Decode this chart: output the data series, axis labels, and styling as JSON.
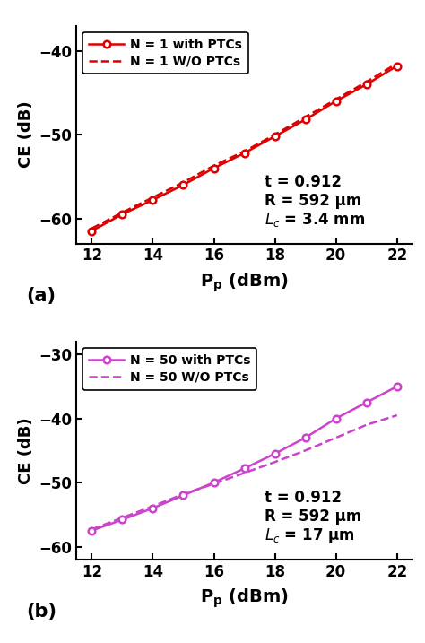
{
  "panel_a": {
    "x": [
      12,
      13,
      14,
      15,
      16,
      17,
      18,
      19,
      20,
      21,
      22
    ],
    "y_with_ptcs": [
      -61.5,
      -59.5,
      -57.8,
      -56.0,
      -54.0,
      -52.2,
      -50.2,
      -48.2,
      -46.0,
      -44.0,
      -41.8
    ],
    "y_wo_ptcs": [
      -61.2,
      -59.3,
      -57.5,
      -55.7,
      -53.7,
      -52.0,
      -50.0,
      -47.9,
      -45.8,
      -43.7,
      -41.5
    ],
    "color_with": "#dd0000",
    "color_wo": "#dd0000",
    "ylabel": "CE (dB)",
    "xlabel": "$\\mathbf{P_p}$ (dBm)",
    "ylim": [
      -63,
      -37
    ],
    "xlim": [
      11.5,
      22.5
    ],
    "yticks": [
      -60,
      -50,
      -40
    ],
    "xticks": [
      12,
      14,
      16,
      18,
      20,
      22
    ],
    "legend1": "N = 1 with PTCs",
    "legend2": "N = 1 W/O PTCs",
    "annot_line1": "t = 0.912",
    "annot_line2": "R = 592 μm",
    "annot_line3": "L",
    "annot_line3b": "c",
    "annot_line3c": " = 3.4 mm",
    "label": "(a)"
  },
  "panel_b": {
    "x": [
      12,
      13,
      14,
      15,
      16,
      17,
      18,
      19,
      20,
      21,
      22
    ],
    "y_with_ptcs": [
      -57.5,
      -55.8,
      -54.0,
      -52.0,
      -50.0,
      -47.8,
      -45.5,
      -43.0,
      -40.0,
      -37.5,
      -35.0
    ],
    "y_wo_ptcs": [
      -57.3,
      -55.5,
      -53.7,
      -51.8,
      -50.2,
      -48.5,
      -46.8,
      -45.0,
      -43.0,
      -41.0,
      -39.5
    ],
    "color_with": "#cc44cc",
    "color_wo": "#cc44cc",
    "ylabel": "CE (dB)",
    "xlabel": "$\\mathbf{P_p}$ (dBm)",
    "ylim": [
      -62,
      -28
    ],
    "xlim": [
      11.5,
      22.5
    ],
    "yticks": [
      -60,
      -50,
      -40,
      -30
    ],
    "xticks": [
      12,
      14,
      16,
      18,
      20,
      22
    ],
    "legend1": "N = 50 with PTCs",
    "legend2": "N = 50 W/O PTCs",
    "annot_line1": "t = 0.912",
    "annot_line2": "R = 592 μm",
    "annot_line3": "L",
    "annot_line3b": "c",
    "annot_line3c": " = 17 μm",
    "label": "(b)"
  }
}
